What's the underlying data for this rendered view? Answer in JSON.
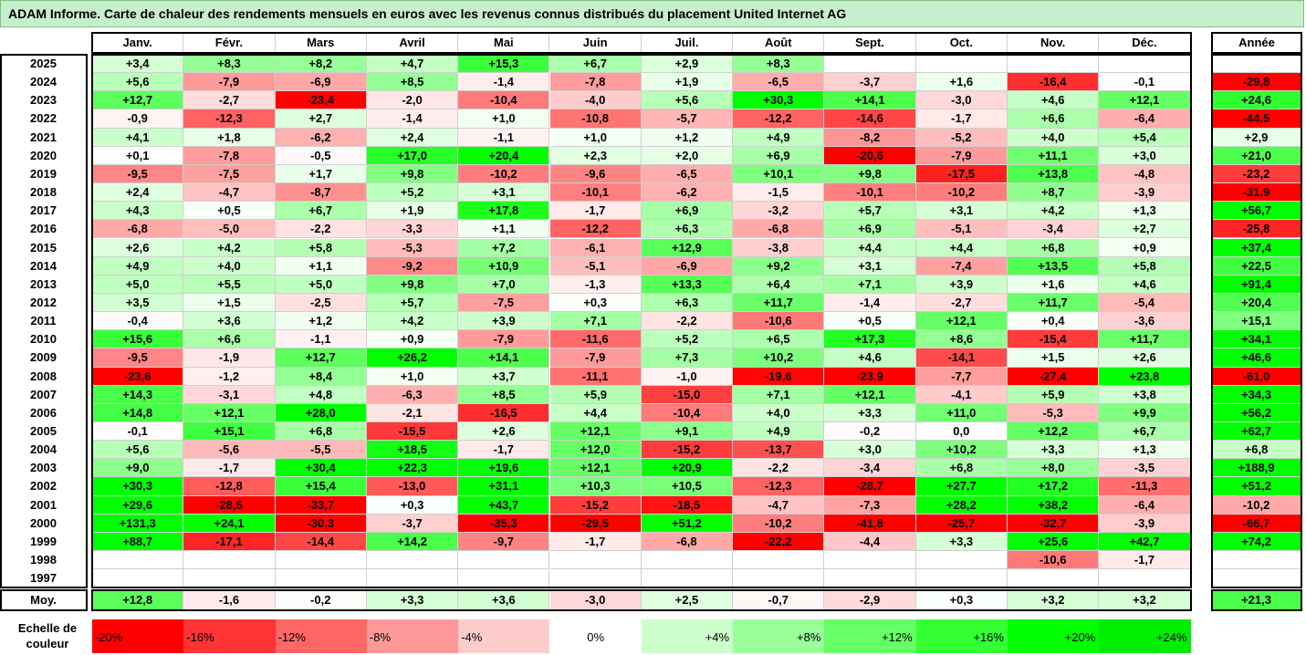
{
  "title": "ADAM Informe. Carte de chaleur des rendements mensuels en euros avec les revenus connus distribués du placement United Internet AG",
  "chart_data": {
    "type": "heatmap",
    "months": [
      "Janv.",
      "Févr.",
      "Mars",
      "Avril",
      "Mai",
      "Juin",
      "Juil.",
      "Août",
      "Sept.",
      "Oct.",
      "Nov.",
      "Déc."
    ],
    "year_header": "Année",
    "rows": [
      {
        "year": "2025",
        "values": [
          "+3,4",
          "+8,3",
          "+8,2",
          "+4,7",
          "+15,3",
          "+6,7",
          "+2,9",
          "+8,3",
          "",
          "",
          "",
          ""
        ],
        "annual": ""
      },
      {
        "year": "2024",
        "values": [
          "+5,6",
          "-7,9",
          "-6,9",
          "+8,5",
          "-1,4",
          "-7,8",
          "+1,9",
          "-6,5",
          "-3,7",
          "+1,6",
          "-16,4",
          "-0,1"
        ],
        "annual": "-29,8"
      },
      {
        "year": "2023",
        "values": [
          "+12,7",
          "-2,7",
          "-23,4",
          "-2,0",
          "-10,4",
          "-4,0",
          "+5,6",
          "+30,3",
          "+14,1",
          "-3,0",
          "+4,6",
          "+12,1"
        ],
        "annual": "+24,6"
      },
      {
        "year": "2022",
        "values": [
          "-0,9",
          "-12,3",
          "+2,7",
          "-1,4",
          "+1,0",
          "-10,8",
          "-5,7",
          "-12,2",
          "-14,6",
          "-1,7",
          "+6,6",
          "-6,4"
        ],
        "annual": "-44,5"
      },
      {
        "year": "2021",
        "values": [
          "+4,1",
          "+1,8",
          "-6,2",
          "+2,4",
          "-1,1",
          "+1,0",
          "+1,2",
          "+4,9",
          "-8,2",
          "-5,2",
          "+4,0",
          "+5,4"
        ],
        "annual": "+2,9"
      },
      {
        "year": "2020",
        "values": [
          "+0,1",
          "-7,8",
          "-0,5",
          "+17,0",
          "+20,4",
          "+2,3",
          "+2,0",
          "+6,9",
          "-20,6",
          "-7,9",
          "+11,1",
          "+3,0"
        ],
        "annual": "+21,0"
      },
      {
        "year": "2019",
        "values": [
          "-9,5",
          "-7,5",
          "+1,7",
          "+9,8",
          "-10,2",
          "-9,6",
          "-6,5",
          "+10,1",
          "+9,8",
          "-17,5",
          "+13,8",
          "-4,8"
        ],
        "annual": "-23,2"
      },
      {
        "year": "2018",
        "values": [
          "+2,4",
          "-4,7",
          "-8,7",
          "+5,2",
          "+3,1",
          "-10,1",
          "-6,2",
          "-1,5",
          "-10,1",
          "-10,2",
          "+8,7",
          "-3,9"
        ],
        "annual": "-31,9"
      },
      {
        "year": "2017",
        "values": [
          "+4,3",
          "+0,5",
          "+6,7",
          "+1,9",
          "+17,8",
          "-1,7",
          "+6,9",
          "-3,2",
          "+5,7",
          "+3,1",
          "+4,2",
          "+1,3"
        ],
        "annual": "+56,7"
      },
      {
        "year": "2016",
        "values": [
          "-6,8",
          "-5,0",
          "-2,2",
          "-3,3",
          "+1,1",
          "-12,2",
          "+6,3",
          "-6,8",
          "+6,9",
          "-5,1",
          "-3,4",
          "+2,7"
        ],
        "annual": "-25,8"
      },
      {
        "year": "2015",
        "values": [
          "+2,6",
          "+4,2",
          "+5,8",
          "-5,3",
          "+7,2",
          "-6,1",
          "+12,9",
          "-3,8",
          "+4,4",
          "+4,4",
          "+6,8",
          "+0,9"
        ],
        "annual": "+37,4"
      },
      {
        "year": "2014",
        "values": [
          "+4,9",
          "+4,0",
          "+1,1",
          "-9,2",
          "+10,9",
          "-5,1",
          "-6,9",
          "+9,2",
          "+3,1",
          "-7,4",
          "+13,5",
          "+5,8"
        ],
        "annual": "+22,5"
      },
      {
        "year": "2013",
        "values": [
          "+5,0",
          "+5,5",
          "+5,0",
          "+9,8",
          "+7,0",
          "-1,3",
          "+13,3",
          "+6,4",
          "+7,1",
          "+3,9",
          "+1,6",
          "+4,6"
        ],
        "annual": "+91,4"
      },
      {
        "year": "2012",
        "values": [
          "+3,5",
          "+1,5",
          "-2,5",
          "+5,7",
          "-7,5",
          "+0,3",
          "+6,3",
          "+11,7",
          "-1,4",
          "-2,7",
          "+11,7",
          "-5,4"
        ],
        "annual": "+20,4"
      },
      {
        "year": "2011",
        "values": [
          "-0,4",
          "+3,6",
          "+1,2",
          "+4,2",
          "+3,9",
          "+7,1",
          "-2,2",
          "-10,6",
          "+0,5",
          "+12,1",
          "+0,4",
          "-3,6"
        ],
        "annual": "+15,1"
      },
      {
        "year": "2010",
        "values": [
          "+15,6",
          "+6,6",
          "-1,1",
          "+0,9",
          "-7,9",
          "-11,6",
          "+5,2",
          "+6,5",
          "+17,3",
          "+8,6",
          "-15,4",
          "+11,7"
        ],
        "annual": "+34,1"
      },
      {
        "year": "2009",
        "values": [
          "-9,5",
          "-1,9",
          "+12,7",
          "+26,2",
          "+14,1",
          "-7,9",
          "+7,3",
          "+10,2",
          "+4,6",
          "-14,1",
          "+1,5",
          "+2,6"
        ],
        "annual": "+46,6"
      },
      {
        "year": "2008",
        "values": [
          "-23,6",
          "-1,2",
          "+8,4",
          "+1,0",
          "+3,7",
          "-11,1",
          "-1,0",
          "-19,6",
          "-23,9",
          "-7,7",
          "-27,4",
          "+23,8"
        ],
        "annual": "-61,0"
      },
      {
        "year": "2007",
        "values": [
          "+14,3",
          "-3,1",
          "+4,8",
          "-6,3",
          "+8,5",
          "+5,9",
          "-15,0",
          "+7,1",
          "+12,1",
          "-4,1",
          "+5,9",
          "+3,8"
        ],
        "annual": "+34,3"
      },
      {
        "year": "2006",
        "values": [
          "+14,8",
          "+12,1",
          "+28,0",
          "-2,1",
          "-16,5",
          "+4,4",
          "-10,4",
          "+4,0",
          "+3,3",
          "+11,0",
          "-5,3",
          "+9,9"
        ],
        "annual": "+56,2"
      },
      {
        "year": "2005",
        "values": [
          "-0,1",
          "+15,1",
          "+6,8",
          "-15,5",
          "+2,6",
          "+12,1",
          "+9,1",
          "+4,9",
          "-0,2",
          "0,0",
          "+12,2",
          "+6,7"
        ],
        "annual": "+62,7"
      },
      {
        "year": "2004",
        "values": [
          "+5,6",
          "-5,6",
          "-5,5",
          "+18,5",
          "-1,7",
          "+12,0",
          "-15,2",
          "-13,7",
          "+3,0",
          "+10,2",
          "+3,3",
          "+1,3"
        ],
        "annual": "+6,8"
      },
      {
        "year": "2003",
        "values": [
          "+9,0",
          "-1,7",
          "+30,4",
          "+22,3",
          "+19,6",
          "+12,1",
          "+20,9",
          "-2,2",
          "-3,4",
          "+6,8",
          "+8,0",
          "-3,5"
        ],
        "annual": "+188,9"
      },
      {
        "year": "2002",
        "values": [
          "+30,3",
          "-12,8",
          "+15,4",
          "-13,0",
          "+31,1",
          "+10,3",
          "+10,5",
          "-12,3",
          "-28,7",
          "+27,7",
          "+17,2",
          "-11,3"
        ],
        "annual": "+51,2"
      },
      {
        "year": "2001",
        "values": [
          "+29,6",
          "-28,5",
          "-33,7",
          "+0,3",
          "+43,7",
          "-15,2",
          "-18,5",
          "-4,7",
          "-7,3",
          "+28,2",
          "+38,2",
          "-6,4"
        ],
        "annual": "-10,2"
      },
      {
        "year": "2000",
        "values": [
          "+131,3",
          "+24,1",
          "-30,3",
          "-3,7",
          "-35,3",
          "-29,5",
          "+51,2",
          "-10,2",
          "-41,8",
          "-25,7",
          "-32,7",
          "-3,9"
        ],
        "annual": "-66,7"
      },
      {
        "year": "1999",
        "values": [
          "+88,7",
          "-17,1",
          "-14,4",
          "+14,2",
          "-9,7",
          "-1,7",
          "-6,8",
          "-22,2",
          "-4,4",
          "+3,3",
          "+25,6",
          "+42,7"
        ],
        "annual": "+74,2"
      },
      {
        "year": "1998",
        "values": [
          "",
          "",
          "",
          "",
          "",
          "",
          "",
          "",
          "",
          "",
          "-10,6",
          "-1,7"
        ],
        "annual": ""
      },
      {
        "year": "1997",
        "values": [
          "",
          "",
          "",
          "",
          "",
          "",
          "",
          "",
          "",
          "",
          "",
          ""
        ],
        "annual": ""
      }
    ],
    "average": {
      "label": "Moy.",
      "values": [
        "+12,8",
        "-1,6",
        "-0,2",
        "+3,3",
        "+3,6",
        "-3,0",
        "+2,5",
        "-0,7",
        "-2,9",
        "+0,3",
        "+3,2",
        "+3,2"
      ],
      "annual": "+21,3"
    },
    "scale": {
      "label": "Echelle de couleur",
      "steps": [
        "-20%",
        "-16%",
        "-12%",
        "-8%",
        "-4%",
        "0%",
        "+4%",
        "+8%",
        "+12%",
        "+16%",
        "+20%",
        "+24%"
      ],
      "colors": [
        "#ff0000",
        "#ff3333",
        "#ff6666",
        "#ff9999",
        "#ffcccc",
        "#ffffff",
        "#ccffcc",
        "#99ff99",
        "#66ff66",
        "#33ff33",
        "#00ff00",
        "#00ee00"
      ]
    }
  }
}
